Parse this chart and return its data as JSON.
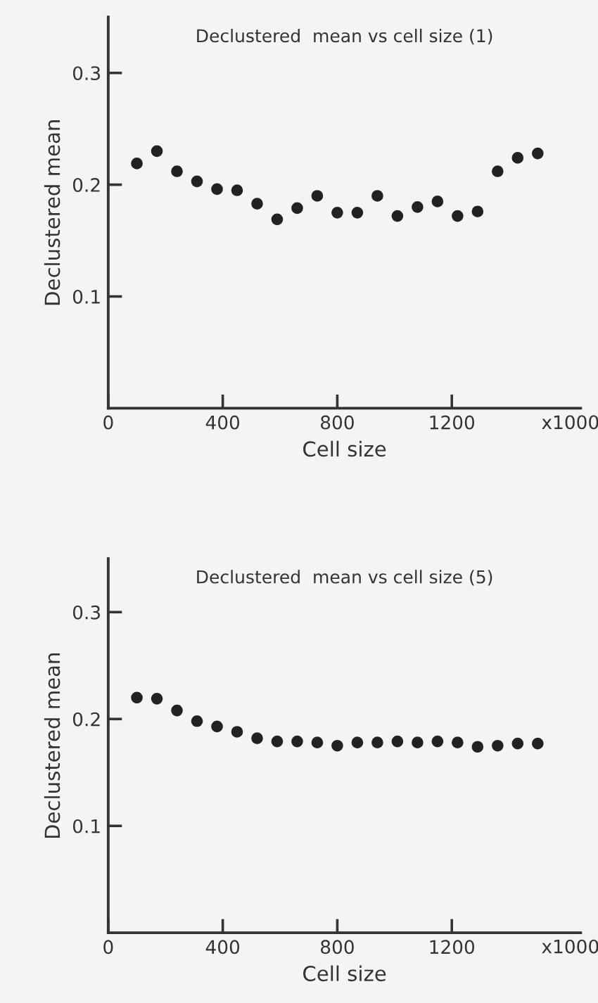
{
  "chart_data": [
    {
      "type": "scatter",
      "title": "Declustered  mean vs cell size (1)",
      "xlabel": "Cell size",
      "ylabel": "Declustered mean",
      "annotations": [
        "x1000"
      ],
      "x": [
        100,
        170,
        240,
        310,
        380,
        450,
        520,
        590,
        660,
        730,
        800,
        870,
        940,
        1010,
        1080,
        1150,
        1220,
        1290,
        1360,
        1430,
        1500
      ],
      "series": [
        {
          "color": "#222222",
          "values": [
            0.219,
            0.23,
            0.212,
            0.203,
            0.196,
            0.195,
            0.183,
            0.169,
            0.179,
            0.19,
            0.175,
            0.175,
            0.19,
            0.172,
            0.18,
            0.185,
            0.172,
            0.176,
            0.212,
            0.224,
            0.228
          ]
        }
      ],
      "xlim": [
        0,
        1650
      ],
      "ylim": [
        0,
        0.35
      ],
      "xticks": [
        0,
        400,
        800,
        1200
      ],
      "yticks": [
        0.1,
        0.2,
        0.3
      ],
      "marker": "circle",
      "grid": false,
      "legend": false
    },
    {
      "type": "scatter",
      "title": "Declustered  mean vs cell size (5)",
      "xlabel": "Cell size",
      "ylabel": "Declustered mean",
      "annotations": [
        "x1000"
      ],
      "x": [
        100,
        170,
        240,
        310,
        380,
        450,
        520,
        590,
        660,
        730,
        800,
        870,
        940,
        1010,
        1080,
        1150,
        1220,
        1290,
        1360,
        1430,
        1500
      ],
      "series": [
        {
          "color": "#222222",
          "values": [
            0.22,
            0.219,
            0.208,
            0.198,
            0.193,
            0.188,
            0.182,
            0.179,
            0.179,
            0.178,
            0.175,
            0.178,
            0.178,
            0.179,
            0.178,
            0.179,
            0.178,
            0.174,
            0.175,
            0.177,
            0.177
          ]
        }
      ],
      "xlim": [
        0,
        1650
      ],
      "ylim": [
        0,
        0.35
      ],
      "xticks": [
        0,
        400,
        800,
        1200
      ],
      "yticks": [
        0.1,
        0.2,
        0.3
      ],
      "marker": "circle",
      "grid": false,
      "legend": false
    }
  ]
}
